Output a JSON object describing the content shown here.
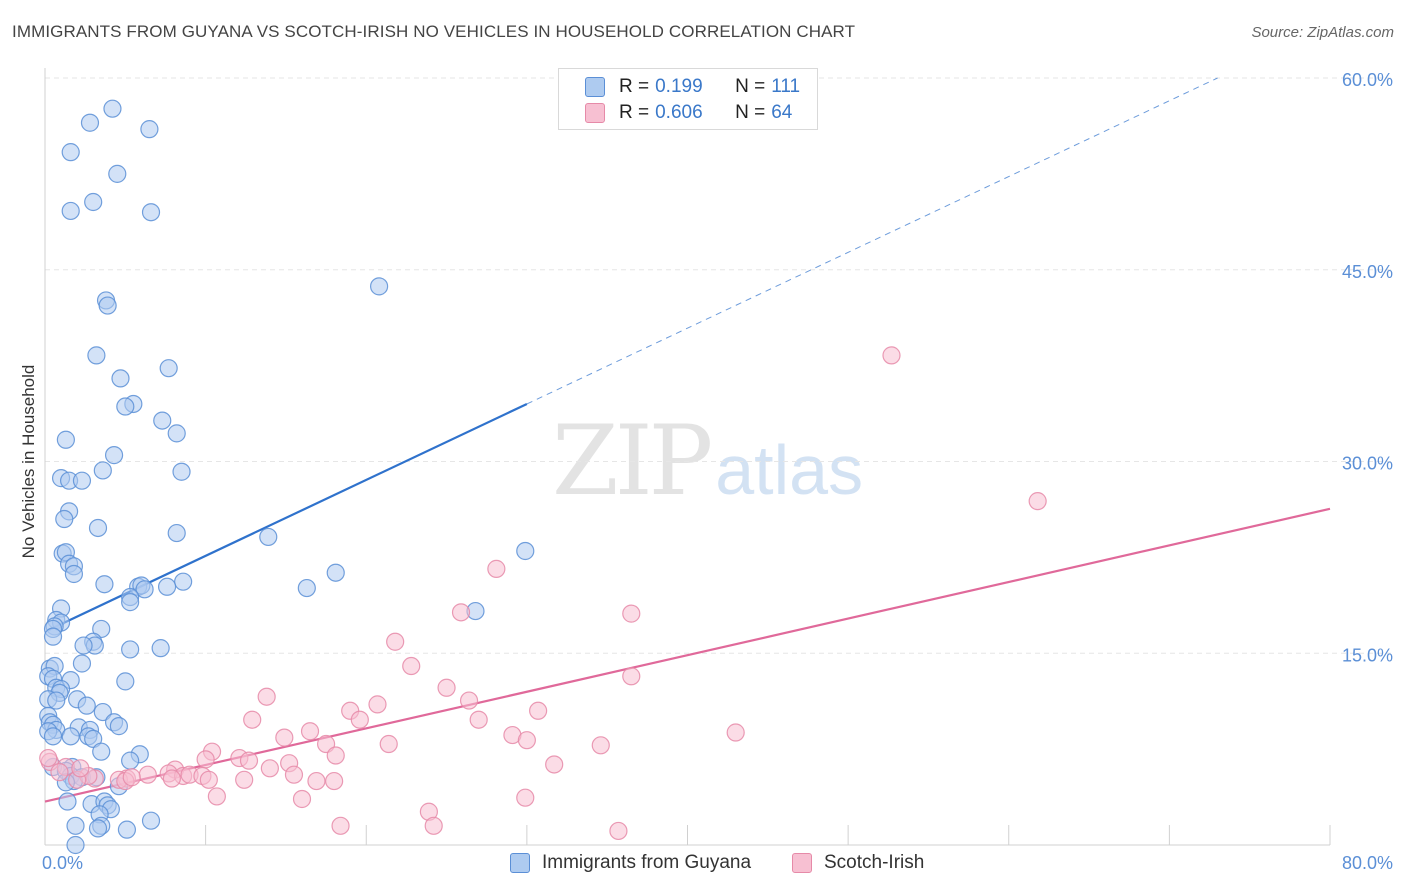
{
  "title": "IMMIGRANTS FROM GUYANA VS SCOTCH-IRISH NO VEHICLES IN HOUSEHOLD CORRELATION CHART",
  "source": "Source: ZipAtlas.com",
  "watermark": {
    "zip": "ZIP",
    "atlas": "atlas"
  },
  "colors": {
    "blue_fill": "#aecbf0",
    "blue_stroke": "#5b8fd6",
    "blue_line": "#2f72cc",
    "pink_fill": "#f7c0d2",
    "pink_stroke": "#e68aa8",
    "pink_line": "#e0699a",
    "grid": "#e6e6e6",
    "tick_label": "#5b8fd6"
  },
  "legend": {
    "rows": [
      {
        "r_label": "R = ",
        "r_value": "0.199",
        "n_label": "N = ",
        "n_value": "111"
      },
      {
        "r_label": "R = ",
        "r_value": "0.606",
        "n_label": "N = ",
        "n_value": "64"
      }
    ]
  },
  "chart_data": {
    "type": "scatter",
    "title": "IMMIGRANTS FROM GUYANA VS SCOTCH-IRISH NO VEHICLES IN HOUSEHOLD CORRELATION CHART",
    "xlabel": "",
    "ylabel": "No Vehicles in Household",
    "xlim": [
      0,
      80
    ],
    "ylim": [
      0,
      60
    ],
    "x_tick_labels": [
      "0.0%",
      "80.0%"
    ],
    "y_ticks": [
      15,
      30,
      45,
      60
    ],
    "y_tick_labels": [
      "15.0%",
      "30.0%",
      "45.0%",
      "60.0%"
    ],
    "grid": true,
    "legend_position": "bottom",
    "series": [
      {
        "name": "Immigrants from Guyana",
        "r": 0.199,
        "n": 111,
        "trend": {
          "x": [
            0.2,
            30
          ],
          "y": [
            16.8,
            34.5
          ],
          "dashed_to": [
            73,
            60
          ]
        },
        "points": [
          [
            4.2,
            57.6
          ],
          [
            2.8,
            56.5
          ],
          [
            6.5,
            56.0
          ],
          [
            1.6,
            54.2
          ],
          [
            4.5,
            52.5
          ],
          [
            3.0,
            50.3
          ],
          [
            1.6,
            49.6
          ],
          [
            6.6,
            49.5
          ],
          [
            20.8,
            43.7
          ],
          [
            3.8,
            42.6
          ],
          [
            3.9,
            42.2
          ],
          [
            3.2,
            38.3
          ],
          [
            7.7,
            37.3
          ],
          [
            4.7,
            36.5
          ],
          [
            5.5,
            34.5
          ],
          [
            5.0,
            34.3
          ],
          [
            7.3,
            33.2
          ],
          [
            8.2,
            32.2
          ],
          [
            1.3,
            31.7
          ],
          [
            4.3,
            30.5
          ],
          [
            3.6,
            29.3
          ],
          [
            8.5,
            29.2
          ],
          [
            1.0,
            28.7
          ],
          [
            1.5,
            28.5
          ],
          [
            2.3,
            28.5
          ],
          [
            1.5,
            26.1
          ],
          [
            1.2,
            25.5
          ],
          [
            3.3,
            24.8
          ],
          [
            8.2,
            24.4
          ],
          [
            13.9,
            24.1
          ],
          [
            29.9,
            23.0
          ],
          [
            1.1,
            22.8
          ],
          [
            1.3,
            22.9
          ],
          [
            1.5,
            22.0
          ],
          [
            1.8,
            21.8
          ],
          [
            1.8,
            21.2
          ],
          [
            18.1,
            21.3
          ],
          [
            8.6,
            20.6
          ],
          [
            3.7,
            20.4
          ],
          [
            5.8,
            20.2
          ],
          [
            6.0,
            20.3
          ],
          [
            6.2,
            20.0
          ],
          [
            7.6,
            20.2
          ],
          [
            16.3,
            20.1
          ],
          [
            5.3,
            19.4
          ],
          [
            5.3,
            19.0
          ],
          [
            1.0,
            18.5
          ],
          [
            26.8,
            18.3
          ],
          [
            0.7,
            17.6
          ],
          [
            1.0,
            17.4
          ],
          [
            0.6,
            17.1
          ],
          [
            0.5,
            16.9
          ],
          [
            3.5,
            16.9
          ],
          [
            0.5,
            16.3
          ],
          [
            3.0,
            15.9
          ],
          [
            3.1,
            15.6
          ],
          [
            2.4,
            15.6
          ],
          [
            7.2,
            15.4
          ],
          [
            5.3,
            15.3
          ],
          [
            2.3,
            14.2
          ],
          [
            0.3,
            13.8
          ],
          [
            0.6,
            14.0
          ],
          [
            0.2,
            13.2
          ],
          [
            0.5,
            13.0
          ],
          [
            1.6,
            12.9
          ],
          [
            5.0,
            12.8
          ],
          [
            0.7,
            12.3
          ],
          [
            1.0,
            12.2
          ],
          [
            0.9,
            11.9
          ],
          [
            0.2,
            11.4
          ],
          [
            0.7,
            11.3
          ],
          [
            2.0,
            11.4
          ],
          [
            2.6,
            10.9
          ],
          [
            3.6,
            10.4
          ],
          [
            0.2,
            10.1
          ],
          [
            0.3,
            9.6
          ],
          [
            0.5,
            9.4
          ],
          [
            0.7,
            9.0
          ],
          [
            2.1,
            9.2
          ],
          [
            2.8,
            9.0
          ],
          [
            4.3,
            9.6
          ],
          [
            4.6,
            9.3
          ],
          [
            0.2,
            8.9
          ],
          [
            0.5,
            8.5
          ],
          [
            1.6,
            8.5
          ],
          [
            2.7,
            8.5
          ],
          [
            3.0,
            8.3
          ],
          [
            3.5,
            7.3
          ],
          [
            5.9,
            7.1
          ],
          [
            5.3,
            6.6
          ],
          [
            0.5,
            6.1
          ],
          [
            1.7,
            6.1
          ],
          [
            1.3,
            5.8
          ],
          [
            1.6,
            5.4
          ],
          [
            2.3,
            5.3
          ],
          [
            3.2,
            5.3
          ],
          [
            1.8,
            5.0
          ],
          [
            1.3,
            4.9
          ],
          [
            4.6,
            4.6
          ],
          [
            1.4,
            3.4
          ],
          [
            2.9,
            3.2
          ],
          [
            3.7,
            3.4
          ],
          [
            3.9,
            3.1
          ],
          [
            4.1,
            2.8
          ],
          [
            3.4,
            2.4
          ],
          [
            3.5,
            1.5
          ],
          [
            3.3,
            1.3
          ],
          [
            5.1,
            1.2
          ],
          [
            1.9,
            1.5
          ],
          [
            6.6,
            1.9
          ],
          [
            1.9,
            0.0
          ]
        ]
      },
      {
        "name": "Scotch-Irish",
        "r": 0.606,
        "n": 64,
        "trend": {
          "x": [
            0,
            80
          ],
          "y": [
            3.4,
            26.3
          ]
        },
        "points": [
          [
            52.7,
            38.3
          ],
          [
            61.8,
            26.9
          ],
          [
            28.1,
            21.6
          ],
          [
            25.9,
            18.2
          ],
          [
            36.5,
            18.1
          ],
          [
            21.8,
            15.9
          ],
          [
            22.8,
            14.0
          ],
          [
            36.5,
            13.2
          ],
          [
            25.0,
            12.3
          ],
          [
            13.8,
            11.6
          ],
          [
            26.4,
            11.3
          ],
          [
            20.7,
            11.0
          ],
          [
            19.0,
            10.5
          ],
          [
            30.7,
            10.5
          ],
          [
            12.9,
            9.8
          ],
          [
            19.6,
            9.8
          ],
          [
            27.0,
            9.8
          ],
          [
            16.5,
            8.9
          ],
          [
            29.1,
            8.6
          ],
          [
            43.0,
            8.8
          ],
          [
            14.9,
            8.4
          ],
          [
            30.0,
            8.2
          ],
          [
            17.5,
            7.9
          ],
          [
            21.4,
            7.9
          ],
          [
            34.6,
            7.8
          ],
          [
            10.4,
            7.3
          ],
          [
            18.1,
            7.0
          ],
          [
            10.0,
            6.7
          ],
          [
            12.1,
            6.8
          ],
          [
            12.7,
            6.6
          ],
          [
            15.2,
            6.4
          ],
          [
            31.7,
            6.3
          ],
          [
            14.0,
            6.0
          ],
          [
            8.1,
            5.9
          ],
          [
            7.7,
            5.6
          ],
          [
            8.6,
            5.4
          ],
          [
            9.0,
            5.5
          ],
          [
            9.8,
            5.4
          ],
          [
            15.5,
            5.5
          ],
          [
            7.9,
            5.2
          ],
          [
            6.4,
            5.5
          ],
          [
            5.1,
            5.2
          ],
          [
            3.1,
            5.2
          ],
          [
            4.6,
            5.1
          ],
          [
            10.2,
            5.1
          ],
          [
            12.4,
            5.1
          ],
          [
            16.9,
            5.0
          ],
          [
            18.0,
            5.0
          ],
          [
            5.0,
            5.0
          ],
          [
            5.4,
            5.3
          ],
          [
            0.3,
            6.5
          ],
          [
            0.2,
            6.8
          ],
          [
            1.3,
            6.1
          ],
          [
            0.9,
            5.7
          ],
          [
            2.7,
            5.4
          ],
          [
            2.0,
            5.1
          ],
          [
            10.7,
            3.8
          ],
          [
            16.0,
            3.6
          ],
          [
            29.9,
            3.7
          ],
          [
            23.9,
            2.6
          ],
          [
            18.4,
            1.5
          ],
          [
            24.2,
            1.5
          ],
          [
            35.7,
            1.1
          ],
          [
            2.2,
            6.0
          ]
        ]
      }
    ]
  },
  "legend_bottom": {
    "items": [
      "Immigrants from Guyana",
      "Scotch-Irish"
    ]
  }
}
